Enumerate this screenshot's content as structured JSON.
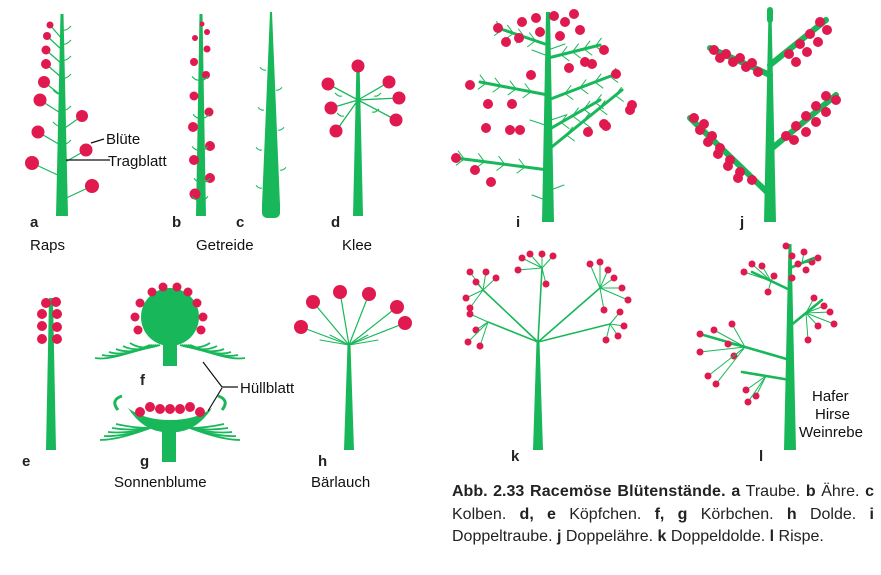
{
  "colors": {
    "stem": "#18b85a",
    "flower": "#e0194f",
    "line": "#111111",
    "background": "#ffffff"
  },
  "panels": [
    {
      "letter": "a",
      "name": "Raps"
    },
    {
      "letter": "b",
      "name": "Getreide"
    },
    {
      "letter": "c",
      "name": ""
    },
    {
      "letter": "d",
      "name": "Klee"
    },
    {
      "letter": "e",
      "name": ""
    },
    {
      "letter": "f",
      "name": ""
    },
    {
      "letter": "g",
      "name": "Sonnenblume"
    },
    {
      "letter": "h",
      "name": "Bärlauch"
    },
    {
      "letter": "i",
      "name": ""
    },
    {
      "letter": "j",
      "name": ""
    },
    {
      "letter": "k",
      "name": ""
    },
    {
      "letter": "l",
      "name": ""
    }
  ],
  "annotations": {
    "bluete": "Blüte",
    "tragblatt": "Tragblatt",
    "huellblatt": "Hüllblatt",
    "l_examples": [
      "Hafer",
      "Hirse",
      "Weinrebe"
    ]
  },
  "caption": {
    "label": "Abb. 2.33",
    "title": "Racemöse Blütenstände.",
    "items": [
      {
        "key": "a",
        "text": "Traube."
      },
      {
        "key": "b",
        "text": "Ähre."
      },
      {
        "key": "c",
        "text": "Kolben."
      },
      {
        "key": "d, e",
        "text": "Köpfchen."
      },
      {
        "key": "f, g",
        "text": "Körbchen."
      },
      {
        "key": "h",
        "text": "Dolde."
      },
      {
        "key": "i",
        "text": "Doppeltraube."
      },
      {
        "key": "j",
        "text": "Doppelähre."
      },
      {
        "key": "k",
        "text": "Doppeldolde."
      },
      {
        "key": "l",
        "text": "Rispe."
      }
    ]
  }
}
